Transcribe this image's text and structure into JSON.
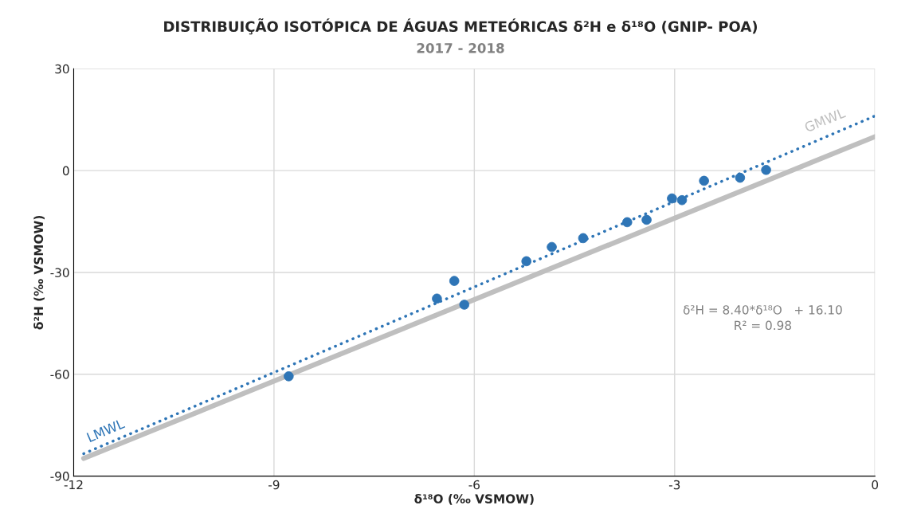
{
  "chart_data": {
    "type": "scatter",
    "title": "DISTRIBUIÇÃO ISOTÓPICA DE ÁGUAS METEÓRICAS δ²H e δ¹⁸O (GNIP- POA)",
    "subtitle": "2017 - 2018",
    "xlabel": "δ¹⁸O (‰ VSMOW)",
    "ylabel": "δ²H (‰ VSMOW)",
    "series": [
      {
        "color": "#2e75b6",
        "marker": "circle",
        "x": [
          -8.78,
          -6.56,
          -6.3,
          -6.15,
          -5.22,
          -4.84,
          -4.37,
          -3.71,
          -3.42,
          -3.04,
          -2.89,
          -2.56,
          -2.02,
          -1.63
        ],
        "values": [
          -60.6,
          -37.7,
          -32.5,
          -39.5,
          -26.7,
          -22.5,
          -19.9,
          -15.2,
          -14.5,
          -8.2,
          -8.7,
          -3.0,
          -2.1,
          0.2
        ]
      },
      {
        "type": "line",
        "name": "GMWL",
        "color": "#bfbfbf",
        "line_style": "solid",
        "x": [
          -11.85,
          0
        ],
        "values": [
          -84.8,
          10
        ]
      },
      {
        "type": "line",
        "name": "LMWL",
        "color": "#2e75b6",
        "line_style": "dotted",
        "x": [
          -11.85,
          0
        ],
        "values": [
          -83.4,
          16.1
        ]
      }
    ],
    "xlim": [
      -12,
      0
    ],
    "xticks": [
      -12,
      -9,
      -6,
      -3,
      0
    ],
    "ylim": [
      -90,
      30
    ],
    "yticks": [
      -90,
      -60,
      -30,
      0,
      30
    ],
    "grid": true,
    "marker": "none",
    "legend": false,
    "annotations": [
      "δ²H = 8.40*δ¹⁸O   + 16.10\nR² = 0.98"
    ]
  }
}
